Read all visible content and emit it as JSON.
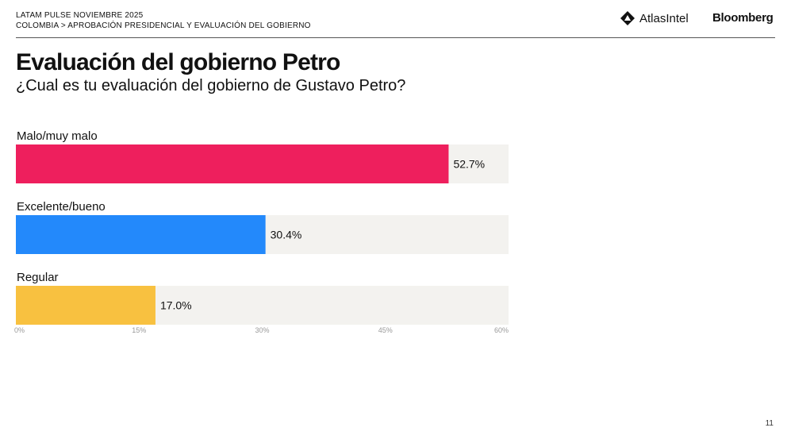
{
  "header": {
    "line1": "LATAM PULSE NOVIEMBRE 2025",
    "line2": "COLOMBIA > APROBACIÓN PRESIDENCIAL Y EVALUACIÓN DEL GOBIERNO",
    "brand_atlas": "AtlasIntel",
    "brand_bloomberg": "Bloomberg"
  },
  "page_number": "11",
  "colors": {
    "track": "#f3f2ef",
    "axis_text": "#999999"
  },
  "chart_data": {
    "type": "bar",
    "orientation": "horizontal",
    "title": "Evaluación del gobierno Petro",
    "subtitle": "¿Cual es tu evaluación del gobierno de Gustavo Petro?",
    "categories": [
      "Malo/muy malo",
      "Excelente/bueno",
      "Regular"
    ],
    "values": [
      52.7,
      30.4,
      17.0
    ],
    "value_labels": [
      "52.7%",
      "30.4%",
      "17.0%"
    ],
    "colors": [
      "#ee1f5d",
      "#2389fb",
      "#f8c140"
    ],
    "xlim": [
      0,
      60
    ],
    "ticks": [
      0,
      15,
      30,
      45,
      60
    ],
    "tick_labels": [
      "0%",
      "15%",
      "30%",
      "45%",
      "60%"
    ],
    "grid": false,
    "legend": "none"
  }
}
